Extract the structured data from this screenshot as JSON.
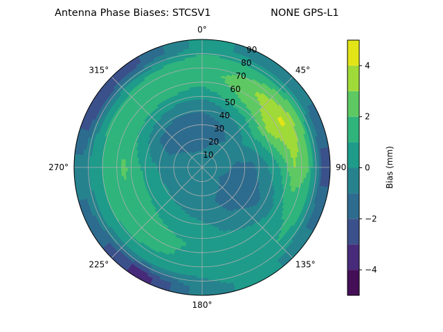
{
  "chart_data": {
    "type": "heatmap",
    "subtype": "polar-filled-contour",
    "title_left": "Antenna Phase Biases: STCSV1",
    "title_right": "NONE GPS-L1",
    "angular_tick_labels": [
      "0°",
      "45°",
      "90°",
      "135°",
      "180°",
      "225°",
      "270°",
      "315°"
    ],
    "angular_ticks_deg": [
      0,
      45,
      90,
      135,
      180,
      225,
      270,
      315
    ],
    "angular_direction": "clockwise",
    "angular_zero": "north",
    "radial_ticks": [
      10,
      20,
      30,
      40,
      50,
      60,
      70,
      80,
      90
    ],
    "radial_tick_labels": [
      "10",
      "20",
      "30",
      "40",
      "50",
      "60",
      "70",
      "80",
      "90"
    ],
    "radial_range": [
      0,
      90
    ],
    "grid": true,
    "colorbar": {
      "label": "Bias (mm)",
      "levels": [
        -5,
        -4,
        -3,
        -2,
        -1,
        0,
        1,
        2,
        3,
        4,
        5
      ],
      "ticks": [
        -4,
        -2,
        0,
        2,
        4
      ],
      "tick_labels": [
        "−4",
        "−2",
        "0",
        "2",
        "4"
      ],
      "colors": [
        "#450f58",
        "#472b7a",
        "#3b518b",
        "#2d6c8e",
        "#26838e",
        "#1f9b8a",
        "#2fb47c",
        "#5ec962",
        "#a0da39",
        "#e2e418"
      ],
      "colormap": "viridis",
      "placement": "right"
    },
    "grid_azimuth_deg": [
      0,
      30,
      60,
      90,
      120,
      150,
      180,
      210,
      240,
      270,
      300,
      330
    ],
    "grid_zenith_deg": [
      5,
      15,
      25,
      35,
      45,
      55,
      65,
      75,
      85
    ],
    "values_mm": [
      [
        -0.5,
        -0.5,
        -0.5,
        -0.5,
        -0.5,
        -0.5,
        -0.5,
        -0.5,
        -0.5,
        -0.5,
        -0.5,
        -0.5
      ],
      [
        -1.2,
        -0.8,
        -0.5,
        -0.7,
        -1.1,
        -0.7,
        -0.5,
        -0.4,
        -0.4,
        -0.5,
        -0.8,
        -1.2
      ],
      [
        -1.5,
        -1.3,
        -0.5,
        -1.2,
        -1.5,
        -1.2,
        -0.6,
        -0.4,
        -0.3,
        -0.5,
        -1.2,
        -1.5
      ],
      [
        -1.3,
        -0.8,
        0.2,
        -1.3,
        -1.6,
        -1.0,
        -0.2,
        0.2,
        0.5,
        0.3,
        -1.0,
        -1.4
      ],
      [
        -0.5,
        0.5,
        1.5,
        -0.2,
        -1.2,
        -0.5,
        0.5,
        0.8,
        1.2,
        1.2,
        0.3,
        -0.3
      ],
      [
        0.8,
        2.0,
        3.5,
        1.0,
        -0.3,
        0.3,
        0.8,
        1.3,
        1.6,
        2.2,
        1.5,
        1.2
      ],
      [
        1.5,
        2.8,
        4.2,
        3.0,
        1.0,
        0.5,
        0.6,
        1.2,
        1.5,
        1.5,
        1.8,
        1.6
      ],
      [
        1.5,
        1.5,
        2.5,
        2.0,
        1.2,
        0.8,
        0.2,
        0.3,
        0.5,
        0.6,
        0.6,
        1.0
      ],
      [
        0.5,
        -0.5,
        -1.0,
        -2.5,
        -1.0,
        0.5,
        -0.5,
        -3.5,
        -1.5,
        -0.5,
        -3.0,
        -2.0
      ]
    ]
  }
}
